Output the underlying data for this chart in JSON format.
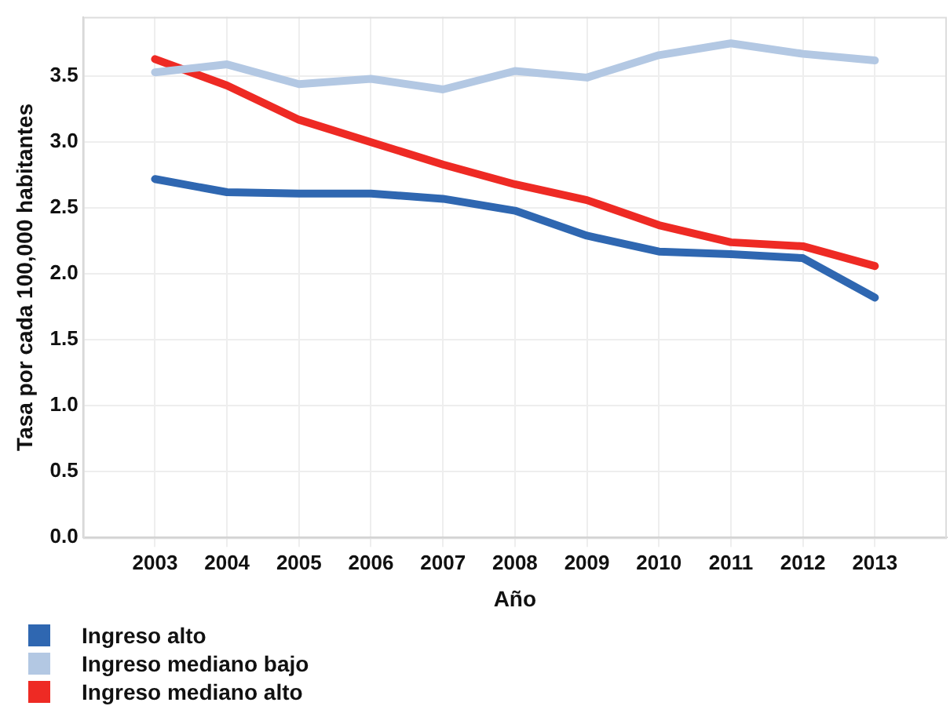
{
  "chart_data": {
    "type": "line",
    "xlabel": "Año",
    "ylabel": "Tasa por cada 100,000 habitantes",
    "x": [
      2003,
      2004,
      2005,
      2006,
      2007,
      2008,
      2009,
      2010,
      2011,
      2012,
      2013
    ],
    "xlim": [
      2002,
      2014
    ],
    "xticks": [
      2003,
      2004,
      2005,
      2006,
      2007,
      2008,
      2009,
      2010,
      2011,
      2012,
      2013
    ],
    "ylim": [
      0,
      3.95
    ],
    "yticks": [
      {
        "value": 0,
        "label": "0.0"
      },
      0.5,
      {
        "value": 1,
        "label": "1.0"
      },
      1.5,
      {
        "value": 2,
        "label": "2.0"
      },
      2.5,
      {
        "value": 3,
        "label": "3.0"
      },
      3.5
    ],
    "grid": true,
    "legend": "bottom left",
    "marker": "none",
    "line_style": "solid",
    "series": [
      {
        "name": "Ingreso alto",
        "color": "#2f67b1",
        "values": [
          2.72,
          2.62,
          2.61,
          2.61,
          2.57,
          2.48,
          2.29,
          2.17,
          2.15,
          2.12,
          1.82
        ]
      },
      {
        "name": "Ingreso mediano bajo",
        "color": "#b3c8e3",
        "values": [
          3.53,
          3.59,
          3.44,
          3.48,
          3.4,
          3.54,
          3.49,
          3.66,
          3.75,
          3.67,
          3.62
        ]
      },
      {
        "name": "Ingreso mediano alto",
        "color": "#ee2a24",
        "values": [
          3.63,
          3.43,
          3.17,
          3.0,
          2.83,
          2.68,
          2.56,
          2.37,
          2.24,
          2.21,
          2.06
        ]
      }
    ]
  }
}
